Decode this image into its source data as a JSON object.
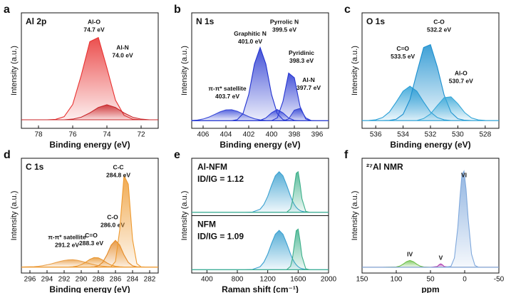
{
  "chart_data": [
    {
      "type": "area",
      "panel": "a",
      "title": "Al 2p",
      "x_label": "Binding energy (eV)",
      "y_label": "Intensity (a.u.)",
      "xlim": [
        79,
        71
      ],
      "xticks": [
        78,
        76,
        74,
        72
      ],
      "ylim": [
        -8,
        100
      ],
      "x": [
        79,
        78.5,
        78,
        77.5,
        77,
        76.5,
        76,
        75.5,
        75,
        74.5,
        74,
        73.5,
        73,
        72.5,
        72,
        71.5,
        71
      ],
      "series": [
        {
          "name": "Al-O",
          "peak_label": "74.7 eV",
          "color": "#e8302f",
          "values": [
            0,
            0,
            0,
            0,
            0.4,
            2.9,
            14.3,
            41.6,
            73,
            76.9,
            48.5,
            18.4,
            4.2,
            0.6,
            0,
            0,
            0
          ]
        },
        {
          "name": "Al-N",
          "peak_label": "74.0 eV",
          "color": "#c8262a",
          "values": [
            0,
            0,
            0,
            0,
            0,
            0,
            0.6,
            2.4,
            6.4,
            11.5,
            14,
            11.5,
            6.4,
            2.4,
            0.6,
            0,
            0
          ]
        }
      ]
    },
    {
      "type": "area",
      "panel": "b",
      "title": "N 1s",
      "x_label": "Binding energy (eV)",
      "y_label": "Intensity (a.u.)",
      "xlim": [
        407,
        395
      ],
      "xticks": [
        406,
        404,
        402,
        400,
        398,
        396
      ],
      "ylim": [
        -8,
        115
      ],
      "x": [
        407,
        406.5,
        406,
        405.5,
        405,
        404.5,
        404,
        403.5,
        403,
        402.5,
        402,
        401.5,
        401,
        400.5,
        400,
        399.5,
        399,
        398.5,
        398,
        397.5,
        397,
        396.5,
        396,
        395.5,
        395
      ],
      "series": [
        {
          "name": "π-π* satellite",
          "peak_label": "403.7 eV",
          "color": "#3a4bd8",
          "values": [
            0.3,
            0.8,
            1.9,
            3.9,
            6.7,
            9.6,
            11.6,
            11.8,
            10.1,
            7.3,
            4.4,
            2.2,
            1.0,
            0.3,
            0.1,
            0,
            0,
            0,
            0,
            0,
            0,
            0,
            0,
            0,
            0
          ]
        },
        {
          "name": "Graphitic N",
          "peak_label": "401.0 eV",
          "color": "#2233d0",
          "values": [
            0,
            0,
            0,
            0,
            0,
            0,
            0,
            0.1,
            1.3,
            7.8,
            28,
            60.5,
            78,
            60.5,
            28,
            7.8,
            1.3,
            0,
            0,
            0,
            0,
            0,
            0,
            0,
            0
          ]
        },
        {
          "name": "Pyrrolic N",
          "peak_label": "399.5 eV",
          "color": "#2a3bd6",
          "values": [
            0,
            0,
            0,
            0,
            0,
            0,
            0,
            0,
            0,
            0,
            0,
            0,
            0.5,
            3,
            8.5,
            12,
            8.5,
            3,
            0.5,
            0,
            0,
            0,
            0,
            0,
            0
          ]
        },
        {
          "name": "Pyridinic",
          "peak_label": "398.3 eV",
          "color": "#2636d2",
          "values": [
            0,
            0,
            0,
            0,
            0,
            0,
            0,
            0,
            0,
            0,
            0,
            0,
            0,
            0,
            0.2,
            3.1,
            20.6,
            50.8,
            45.9,
            15.3,
            1.9,
            0.1,
            0,
            0,
            0
          ]
        },
        {
          "name": "Al-N",
          "peak_label": "397.7 eV",
          "color": "#3344d4",
          "values": [
            0,
            0,
            0,
            0,
            0,
            0,
            0,
            0,
            0,
            0,
            0,
            0,
            0,
            0,
            0,
            0,
            0,
            2,
            11.3,
            13.2,
            3.2,
            0.2,
            0,
            0,
            0
          ]
        }
      ]
    },
    {
      "type": "area",
      "panel": "c",
      "title": "O 1s",
      "x_label": "Binding energy (eV)",
      "y_label": "Intensity (a.u.)",
      "xlim": [
        537,
        527
      ],
      "xticks": [
        536,
        534,
        532,
        530,
        528
      ],
      "ylim": [
        -8,
        110
      ],
      "x": [
        537,
        536.5,
        536,
        535.5,
        535,
        534.5,
        534,
        533.5,
        533,
        532.5,
        532,
        531.5,
        531,
        530.5,
        530,
        529.5,
        529,
        528.5,
        528,
        527.5,
        527
      ],
      "series": [
        {
          "name": "C=O",
          "peak_label": "533.5 eV",
          "color": "#2a9fd6",
          "values": [
            0,
            0.1,
            0.7,
            3,
            8.7,
            18.9,
            30,
            35,
            30,
            18.9,
            8.7,
            3,
            0.7,
            0,
            0,
            0,
            0,
            0,
            0,
            0,
            0
          ]
        },
        {
          "name": "C-O",
          "peak_label": "532.2 eV",
          "color": "#1b8fcf",
          "values": [
            0,
            0,
            0,
            0,
            0.2,
            1.3,
            6.4,
            21.4,
            48.5,
            74.6,
            77.5,
            54.6,
            26,
            8.4,
            1.8,
            0.3,
            0,
            0,
            0,
            0,
            0
          ]
        },
        {
          "name": "Al-O",
          "peak_label": "530.7 eV",
          "color": "#38a8d8",
          "values": [
            0,
            0,
            0,
            0,
            0,
            0,
            0,
            0,
            0,
            2,
            6.7,
            15.2,
            23.3,
            24.2,
            17.1,
            8.1,
            2.6,
            0.6,
            0.1,
            0,
            0
          ]
        }
      ]
    },
    {
      "type": "area",
      "panel": "d",
      "title": "C 1s",
      "x_label": "Binding energy (eV)",
      "y_label": "Intensity (a.u.)",
      "xlim": [
        297,
        281
      ],
      "xticks": [
        296,
        294,
        292,
        290,
        288,
        286,
        284,
        282
      ],
      "ylim": [
        -5,
        90
      ],
      "x": [
        297,
        296.5,
        296,
        295.5,
        295,
        294.5,
        294,
        293.5,
        293,
        292.5,
        292,
        291.5,
        291,
        290.5,
        290,
        289.5,
        289,
        288.5,
        288,
        287.5,
        287,
        286.5,
        286,
        285.5,
        285,
        284.5,
        284,
        283.5,
        283,
        282.5,
        282,
        281.5,
        281
      ],
      "series": [
        {
          "name": "π-π* satellite",
          "peak_label": "291.2 eV",
          "color": "#eaa04a",
          "values": [
            0,
            0.1,
            0.2,
            0.3,
            0.6,
            1.1,
            1.8,
            2.6,
            3.6,
            4.6,
            5.4,
            5.9,
            6,
            5.6,
            4.8,
            3.8,
            2.8,
            1.9,
            1.2,
            0.7,
            0.4,
            0.2,
            0.1,
            0,
            0,
            0,
            0,
            0,
            0,
            0,
            0,
            0,
            0
          ]
        },
        {
          "name": "C=O",
          "peak_label": "288.3 eV",
          "color": "#e8952e",
          "values": [
            0,
            0,
            0,
            0,
            0,
            0,
            0,
            0,
            0,
            0,
            0,
            0,
            0.2,
            0.7,
            1.9,
            3.9,
            6.3,
            7.8,
            7.6,
            5.8,
            3.4,
            1.6,
            0.6,
            0.2,
            0,
            0,
            0,
            0,
            0,
            0,
            0,
            0,
            0
          ]
        },
        {
          "name": "C-O",
          "peak_label": "286.0 eV",
          "color": "#e48a28",
          "values": [
            0,
            0,
            0,
            0,
            0,
            0,
            0,
            0,
            0,
            0,
            0,
            0,
            0,
            0,
            0,
            0,
            0,
            0.2,
            1,
            3.8,
            10,
            18.1,
            22,
            18.1,
            10,
            3.8,
            1,
            0.2,
            0,
            0,
            0,
            0,
            0
          ]
        },
        {
          "name": "C-C",
          "peak_label": "284.8 eV",
          "color": "#ee9a30",
          "values": [
            0,
            0,
            0,
            0,
            0,
            0,
            0,
            0,
            0,
            0,
            0,
            0,
            0,
            0,
            0,
            0,
            0,
            0,
            0,
            0,
            0,
            0.3,
            4.6,
            30.8,
            75.7,
            68.5,
            22.8,
            2.8,
            0.1,
            0,
            0,
            0,
            0
          ]
        }
      ]
    },
    {
      "type": "area",
      "panel": "e",
      "x_label": "Raman shift (cm⁻¹)",
      "y_label": "Intensity (a.u.)",
      "xlim": [
        200,
        2000
      ],
      "xticks": [
        400,
        800,
        1200,
        1600,
        2000
      ],
      "ylim": [
        -5,
        80
      ],
      "x": [
        200,
        600,
        900,
        1000,
        1100,
        1150,
        1200,
        1250,
        1300,
        1350,
        1400,
        1450,
        1500,
        1525,
        1550,
        1575,
        1600,
        1625,
        1650,
        1700,
        1750,
        1800,
        1900,
        2000
      ],
      "subplots": [
        {
          "name": "Al-NFM",
          "annotation": "ID/IG = 1.12",
          "label_color": "#e0282a",
          "series": [
            {
              "color": "#3aa0d0",
              "values": [
                0,
                0,
                0,
                0.4,
                4.5,
                11.5,
                23.7,
                39.8,
                54.1,
                60,
                54.1,
                39.8,
                23.7,
                16.9,
                11.5,
                7.4,
                4.5,
                2.6,
                1.5,
                0.4,
                0.1,
                0,
                0,
                0
              ]
            },
            {
              "color": "#3db08a",
              "values": [
                0,
                0,
                0,
                0,
                0,
                0,
                0,
                0,
                0,
                0,
                0,
                0.1,
                5,
                16.5,
                37.6,
                57.8,
                60.1,
                42.3,
                20.1,
                1.4,
                0,
                0,
                0,
                0
              ]
            }
          ]
        },
        {
          "name": "NFM",
          "annotation": "ID/IG = 1.09",
          "label_color": "#111111",
          "series": [
            {
              "color": "#3aa0d0",
              "values": [
                0,
                0,
                0,
                0.4,
                4.4,
                11.2,
                23,
                38.6,
                52.5,
                58.2,
                52.5,
                38.6,
                23,
                16.4,
                11.2,
                7.2,
                4.4,
                2.5,
                1.5,
                0.4,
                0.1,
                0,
                0,
                0
              ]
            },
            {
              "color": "#3db08a",
              "values": [
                0,
                0,
                0,
                0,
                0,
                0,
                0,
                0,
                0,
                0,
                0,
                0.1,
                5,
                16.5,
                37.6,
                57.8,
                60.1,
                42.3,
                20.1,
                1.4,
                0,
                0,
                0,
                0
              ]
            }
          ]
        }
      ]
    },
    {
      "type": "area",
      "panel": "f",
      "title": "²⁷Al NMR",
      "x_label": "ppm",
      "y_label": "Intensity (a.u.)",
      "xlim": [
        150,
        -50
      ],
      "xticks": [
        150,
        100,
        50,
        0,
        -50
      ],
      "ylim": [
        -5,
        95
      ],
      "x": [
        150,
        120,
        100,
        95,
        90,
        85,
        80,
        75,
        70,
        65,
        60,
        50,
        40,
        37,
        35,
        33,
        30,
        20,
        15,
        10,
        7,
        4,
        1,
        -2,
        -5,
        -10,
        -15,
        -20,
        -50
      ],
      "series": [
        {
          "name": "IV",
          "color": "#6cc04a",
          "values": [
            0,
            0,
            0.3,
            1,
            2.7,
            4.9,
            6,
            4.9,
            2.7,
            1,
            0.3,
            0,
            0,
            0,
            0,
            0,
            0,
            0,
            0,
            0,
            0,
            0,
            0,
            0,
            0,
            0,
            0,
            0,
            0
          ]
        },
        {
          "name": "V",
          "color": "#b040b0",
          "values": [
            0,
            0,
            0,
            0,
            0,
            0,
            0,
            0,
            0,
            0,
            0,
            0,
            0.7,
            2.4,
            3,
            2.4,
            0.7,
            0,
            0,
            0,
            0,
            0,
            0,
            0,
            0,
            0,
            0,
            0,
            0
          ]
        },
        {
          "name": "VI",
          "color": "#7fa8dc",
          "values": [
            0,
            0,
            0,
            0,
            0,
            0,
            0,
            0,
            0,
            0,
            0,
            0,
            0,
            0,
            0,
            0,
            0,
            0.9,
            8.1,
            35,
            60,
            80.7,
            83.8,
            68.1,
            43,
            11.5,
            1.6,
            0.1,
            0
          ]
        }
      ]
    }
  ]
}
